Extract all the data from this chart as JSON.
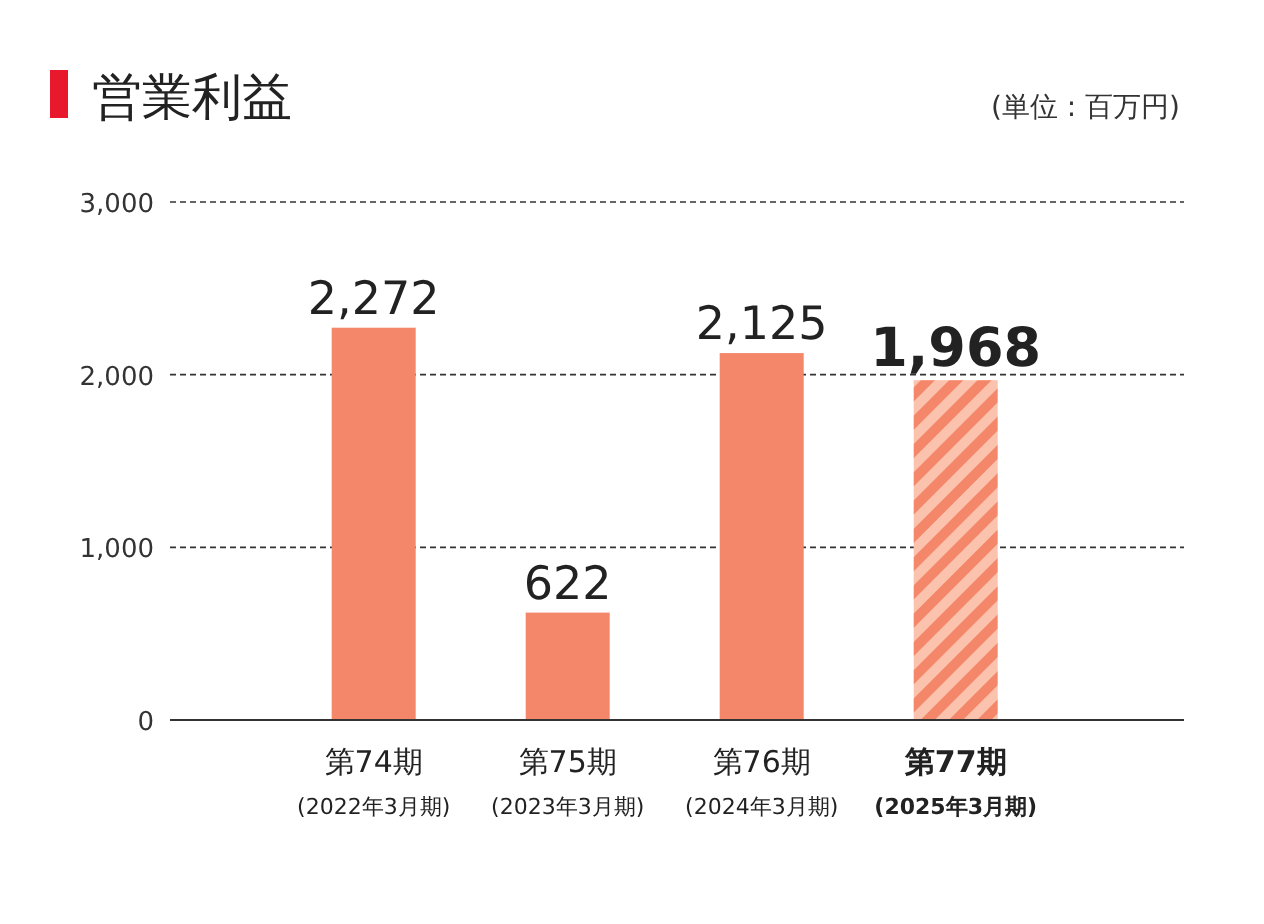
{
  "chart_data": {
    "type": "bar",
    "title": "営業利益",
    "annotations": [
      "(単位 : 百万円)"
    ],
    "categories": [
      "第74期\n(2022年3月期)",
      "第75期\n(2023年3月期)",
      "第76期\n(2024年3月期)",
      "第77期\n(2025年3月期)"
    ],
    "values": [
      2272,
      622,
      2125,
      1968
    ],
    "value_labels": [
      "2,272",
      "622",
      "2,125",
      "1,968"
    ],
    "color": "#f4866a",
    "colors": [
      "#f4866a",
      "#f4866a",
      "#f4866a",
      "#fbc3ad"
    ],
    "ylim": [
      0,
      3000
    ],
    "yticks": [
      0,
      {
        "value": 1000,
        "label": "1,000"
      },
      {
        "value": 2000,
        "label": "2,000"
      },
      {
        "value": 3000,
        "label": "3,000"
      }
    ],
    "grid": "y"
  }
}
